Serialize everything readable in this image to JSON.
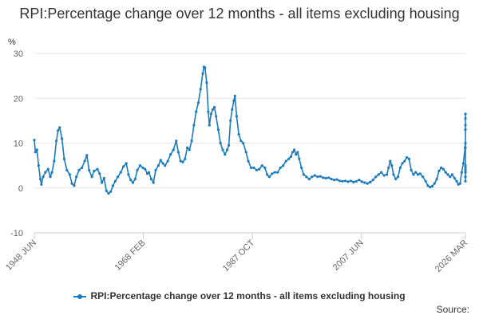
{
  "chart_data": {
    "type": "line",
    "title": "RPI:Percentage change over 12 months - all items excluding housing",
    "ylabel": "%",
    "ylim": [
      -10,
      30
    ],
    "yticks": [
      -10,
      0,
      10,
      20,
      30
    ],
    "xlim": [
      1948.42,
      2026.17
    ],
    "xtick_labels": [
      {
        "label": "1948 JUN",
        "t": 1948.42
      },
      {
        "label": "1968 FEB",
        "t": 1968.08
      },
      {
        "label": "1987 OCT",
        "t": 1987.75
      },
      {
        "label": "2007 JUN",
        "t": 2007.42
      },
      {
        "label": "2026 MAR",
        "t": 2026.17
      }
    ],
    "grid": true,
    "legend_position": "bottom",
    "series": [
      {
        "name": "RPI:Percentage change over 12 months - all items excluding housing",
        "color": "#1a7bbf",
        "points": [
          [
            1948.42,
            10.7
          ],
          [
            1948.6,
            8.0
          ],
          [
            1948.9,
            8.5
          ],
          [
            1949.2,
            5.0
          ],
          [
            1949.5,
            2.0
          ],
          [
            1949.7,
            0.8
          ],
          [
            1950.0,
            2.5
          ],
          [
            1950.4,
            3.5
          ],
          [
            1950.9,
            4.2
          ],
          [
            1951.3,
            2.5
          ],
          [
            1951.6,
            3.5
          ],
          [
            1952.0,
            6.0
          ],
          [
            1952.4,
            10.5
          ],
          [
            1952.7,
            12.8
          ],
          [
            1953.0,
            13.5
          ],
          [
            1953.4,
            11.0
          ],
          [
            1953.8,
            6.5
          ],
          [
            1954.3,
            4.0
          ],
          [
            1954.8,
            3.0
          ],
          [
            1955.2,
            1.0
          ],
          [
            1955.6,
            0.5
          ],
          [
            1956.0,
            2.5
          ],
          [
            1956.5,
            4.0
          ],
          [
            1957.0,
            4.5
          ],
          [
            1957.5,
            6.0
          ],
          [
            1957.9,
            7.3
          ],
          [
            1958.3,
            4.0
          ],
          [
            1958.8,
            2.5
          ],
          [
            1959.2,
            3.8
          ],
          [
            1959.8,
            4.2
          ],
          [
            1960.2,
            3.2
          ],
          [
            1960.6,
            1.2
          ],
          [
            1961.0,
            2.2
          ],
          [
            1961.4,
            -0.6
          ],
          [
            1961.8,
            -1.2
          ],
          [
            1962.2,
            -0.8
          ],
          [
            1962.6,
            0.5
          ],
          [
            1963.0,
            1.5
          ],
          [
            1963.5,
            2.5
          ],
          [
            1964.0,
            3.5
          ],
          [
            1964.5,
            4.8
          ],
          [
            1965.0,
            5.5
          ],
          [
            1965.4,
            3.0
          ],
          [
            1965.8,
            1.8
          ],
          [
            1966.2,
            1.2
          ],
          [
            1966.6,
            2.0
          ],
          [
            1967.0,
            4.0
          ],
          [
            1967.5,
            5.0
          ],
          [
            1968.0,
            4.5
          ],
          [
            1968.4,
            4.2
          ],
          [
            1968.8,
            3.2
          ],
          [
            1969.1,
            3.5
          ],
          [
            1969.5,
            2.0
          ],
          [
            1969.9,
            1.2
          ],
          [
            1970.3,
            4.0
          ],
          [
            1970.8,
            5.0
          ],
          [
            1971.2,
            6.2
          ],
          [
            1971.6,
            5.5
          ],
          [
            1972.0,
            5.0
          ],
          [
            1972.5,
            6.0
          ],
          [
            1973.0,
            7.5
          ],
          [
            1973.5,
            8.5
          ],
          [
            1974.0,
            10.5
          ],
          [
            1974.4,
            8.0
          ],
          [
            1974.8,
            6.0
          ],
          [
            1975.2,
            5.8
          ],
          [
            1975.6,
            6.5
          ],
          [
            1976.0,
            9.0
          ],
          [
            1976.4,
            8.5
          ],
          [
            1976.8,
            10.5
          ],
          [
            1977.2,
            14.0
          ],
          [
            1977.6,
            17.0
          ],
          [
            1978.0,
            19.0
          ],
          [
            1978.4,
            22.0
          ],
          [
            1978.8,
            25.5
          ],
          [
            1979.0,
            27.0
          ],
          [
            1979.2,
            26.8
          ],
          [
            1979.5,
            23.5
          ],
          [
            1979.8,
            17.0
          ],
          [
            1980.0,
            14.0
          ],
          [
            1980.3,
            16.5
          ],
          [
            1980.6,
            17.5
          ],
          [
            1980.9,
            18.0
          ],
          [
            1981.2,
            16.0
          ],
          [
            1981.6,
            13.0
          ],
          [
            1982.0,
            10.0
          ],
          [
            1982.4,
            8.5
          ],
          [
            1982.8,
            7.5
          ],
          [
            1983.2,
            8.5
          ],
          [
            1983.5,
            9.5
          ],
          [
            1983.8,
            15.0
          ],
          [
            1984.1,
            17.5
          ],
          [
            1984.4,
            19.5
          ],
          [
            1984.6,
            20.5
          ],
          [
            1984.9,
            16.0
          ],
          [
            1985.3,
            12.0
          ],
          [
            1985.7,
            10.5
          ],
          [
            1986.1,
            10.0
          ],
          [
            1986.6,
            8.0
          ],
          [
            1987.0,
            6.0
          ],
          [
            1987.5,
            4.5
          ],
          [
            1988.0,
            4.5
          ],
          [
            1988.5,
            4.0
          ],
          [
            1989.0,
            4.2
          ],
          [
            1989.5,
            5.0
          ],
          [
            1990.0,
            4.5
          ],
          [
            1990.4,
            3.0
          ],
          [
            1990.8,
            2.5
          ],
          [
            1991.3,
            3.2
          ],
          [
            1991.8,
            3.5
          ],
          [
            1992.3,
            3.5
          ],
          [
            1992.8,
            4.5
          ],
          [
            1993.3,
            5.0
          ],
          [
            1993.8,
            6.0
          ],
          [
            1994.3,
            6.5
          ],
          [
            1994.7,
            7.0
          ],
          [
            1995.0,
            8.0
          ],
          [
            1995.3,
            8.5
          ],
          [
            1995.6,
            7.5
          ],
          [
            1995.9,
            8.0
          ],
          [
            1996.2,
            6.5
          ],
          [
            1996.6,
            4.5
          ],
          [
            1997.0,
            3.0
          ],
          [
            1997.5,
            2.5
          ],
          [
            1998.0,
            2.0
          ],
          [
            1998.5,
            2.5
          ],
          [
            1999.0,
            2.8
          ],
          [
            1999.5,
            2.5
          ],
          [
            2000.0,
            2.6
          ],
          [
            2000.5,
            2.3
          ],
          [
            2001.0,
            2.2
          ],
          [
            2001.5,
            2.3
          ],
          [
            2002.0,
            2.0
          ],
          [
            2002.5,
            1.8
          ],
          [
            2003.0,
            1.9
          ],
          [
            2003.5,
            1.6
          ],
          [
            2004.0,
            1.5
          ],
          [
            2004.5,
            1.6
          ],
          [
            2005.0,
            1.4
          ],
          [
            2005.5,
            1.6
          ],
          [
            2006.0,
            1.3
          ],
          [
            2006.5,
            1.5
          ],
          [
            2007.0,
            1.8
          ],
          [
            2007.5,
            1.4
          ],
          [
            2008.0,
            1.2
          ],
          [
            2008.5,
            1.0
          ],
          [
            2009.0,
            1.3
          ],
          [
            2009.5,
            1.8
          ],
          [
            2010.0,
            2.5
          ],
          [
            2010.5,
            3.0
          ],
          [
            2011.0,
            3.5
          ],
          [
            2011.5,
            2.8
          ],
          [
            2012.0,
            3.0
          ],
          [
            2012.3,
            4.5
          ],
          [
            2012.6,
            6.0
          ],
          [
            2012.9,
            5.0
          ],
          [
            2013.2,
            3.0
          ],
          [
            2013.6,
            2.0
          ],
          [
            2014.0,
            2.5
          ],
          [
            2014.4,
            4.5
          ],
          [
            2014.8,
            5.5
          ],
          [
            2015.2,
            6.0
          ],
          [
            2015.6,
            6.8
          ],
          [
            2016.0,
            6.5
          ],
          [
            2016.4,
            4.0
          ],
          [
            2016.8,
            3.0
          ],
          [
            2017.2,
            3.5
          ],
          [
            2017.6,
            3.0
          ],
          [
            2018.0,
            3.2
          ],
          [
            2018.5,
            2.5
          ],
          [
            2019.0,
            1.5
          ],
          [
            2019.4,
            0.5
          ],
          [
            2019.8,
            0.2
          ],
          [
            2020.2,
            0.4
          ],
          [
            2020.6,
            1.0
          ],
          [
            2021.0,
            2.0
          ],
          [
            2021.4,
            3.8
          ],
          [
            2021.8,
            4.5
          ],
          [
            2022.2,
            4.2
          ],
          [
            2022.6,
            3.5
          ],
          [
            2023.0,
            3.0
          ],
          [
            2023.4,
            2.5
          ],
          [
            2023.8,
            3.0
          ],
          [
            2024.2,
            2.2
          ],
          [
            2024.6,
            1.5
          ],
          [
            2024.9,
            0.8
          ],
          [
            2025.2,
            1.0
          ],
          [
            2025.5,
            3.5
          ],
          [
            2025.8,
            5.5
          ],
          [
            2026.1,
            9.0
          ],
          [
            2026.17,
            10.0
          ],
          [
            2026.25,
            14.0
          ],
          [
            2026.35,
            16.5
          ],
          [
            2026.45,
            15.5
          ],
          [
            2026.55,
            13.0
          ],
          [
            2026.65,
            9.0
          ],
          [
            2026.75,
            5.0
          ],
          [
            2026.85,
            2.5
          ],
          [
            2026.95,
            1.5
          ],
          [
            2027.05,
            2.5
          ],
          [
            2027.15,
            3.5
          ],
          [
            2027.25,
            4.5
          ],
          [
            2027.35,
            4.0
          ],
          [
            2027.45,
            3.5
          ],
          [
            2027.55,
            4.0
          ]
        ]
      }
    ]
  },
  "source_label": "Source:"
}
